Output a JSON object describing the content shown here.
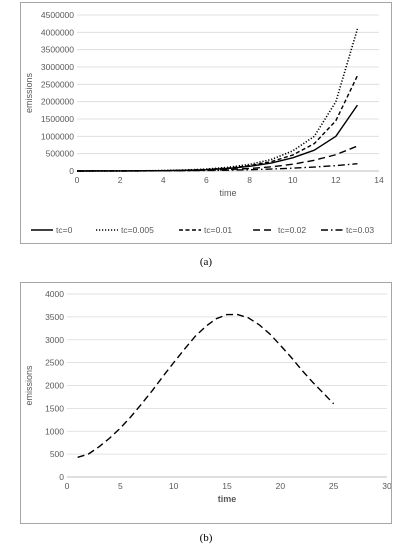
{
  "chart_data": [
    {
      "type": "line",
      "xlabel": "time",
      "ylabel": "emissions",
      "xlim": [
        0,
        14
      ],
      "ylim": [
        0,
        4500000
      ],
      "xticks": [
        "0",
        "2",
        "4",
        "6",
        "8",
        "10",
        "12",
        "14"
      ],
      "yticks": [
        "0",
        "500000",
        "1000000",
        "1500000",
        "2000000",
        "2500000",
        "3000000",
        "3500000",
        "4000000",
        "4500000"
      ],
      "grid": "horizontal",
      "legend_position": "bottom",
      "x": [
        0,
        1,
        2,
        3,
        4,
        5,
        6,
        7,
        8,
        9,
        10,
        11,
        12,
        13
      ],
      "series": [
        {
          "name": "tc=0",
          "dash": "solid",
          "values": [
            0,
            800,
            2000,
            4500,
            9500,
            19000,
            37000,
            72000,
            135000,
            230000,
            380000,
            600000,
            1000000,
            1900000
          ]
        },
        {
          "name": "tc=0.005",
          "dash": "dotted",
          "values": [
            0,
            900,
            2500,
            6000,
            13000,
            28000,
            55000,
            105000,
            190000,
            330000,
            580000,
            1000000,
            2000000,
            4100000
          ]
        },
        {
          "name": "tc=0.01",
          "dash": "dashed-short",
          "values": [
            0,
            850,
            2300,
            5200,
            11000,
            23000,
            45000,
            85000,
            155000,
            270000,
            460000,
            790000,
            1450000,
            2750000
          ]
        },
        {
          "name": "tc=0.02",
          "dash": "dashed-long",
          "values": [
            0,
            700,
            1700,
            3500,
            7000,
            13000,
            24000,
            42000,
            72000,
            120000,
            195000,
            310000,
            470000,
            720000
          ]
        },
        {
          "name": "tc=0.03",
          "dash": "dash-dot",
          "values": [
            0,
            600,
            1400,
            2800,
            5200,
            9000,
            15000,
            24000,
            38000,
            57000,
            82000,
            115000,
            155000,
            210000
          ]
        }
      ]
    },
    {
      "type": "line",
      "xlabel": "time",
      "ylabel": "emissions",
      "xlim": [
        0,
        30
      ],
      "ylim": [
        0,
        4000
      ],
      "xticks": [
        "0",
        "5",
        "10",
        "15",
        "20",
        "25",
        "30"
      ],
      "yticks": [
        "0",
        "500",
        "1000",
        "1500",
        "2000",
        "2500",
        "3000",
        "3500",
        "4000"
      ],
      "grid": "horizontal",
      "x": [
        1,
        2,
        3,
        4,
        5,
        6,
        7,
        8,
        9,
        10,
        11,
        12,
        13,
        14,
        15,
        16,
        17,
        18,
        19,
        20,
        21,
        22,
        23,
        24,
        25
      ],
      "series": [
        {
          "dash": "dashed-long",
          "values": [
            430,
            500,
            660,
            850,
            1070,
            1320,
            1600,
            1890,
            2200,
            2500,
            2790,
            3070,
            3290,
            3460,
            3550,
            3550,
            3480,
            3330,
            3130,
            2880,
            2620,
            2340,
            2080,
            1840,
            1600
          ]
        }
      ]
    }
  ],
  "captions": {
    "a": "(a)",
    "b": "(b)"
  }
}
